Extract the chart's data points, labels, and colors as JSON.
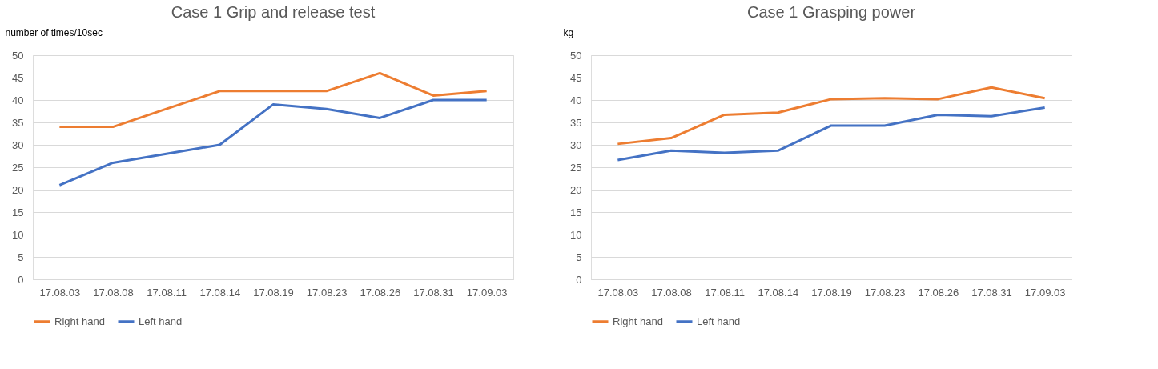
{
  "chart_data": [
    {
      "type": "line",
      "title": "Case 1 Grip and release test",
      "ylabel": "number of times/10sec",
      "categories": [
        "17.08.03",
        "17.08.08",
        "17.08.11",
        "17.08.14",
        "17.08.19",
        "17.08.23",
        "17.08.26",
        "17.08.31",
        "17.09.03"
      ],
      "series": [
        {
          "name": "Right hand",
          "color": "#ed7d31",
          "values": [
            34,
            34,
            38,
            42,
            42,
            42,
            46,
            41,
            42
          ]
        },
        {
          "name": "Left hand",
          "color": "#4472c4",
          "values": [
            21,
            26,
            28,
            30,
            39,
            38,
            36,
            40,
            40
          ]
        }
      ],
      "ylim": [
        0,
        50
      ],
      "yticks": [
        0,
        5,
        10,
        15,
        20,
        25,
        30,
        35,
        40,
        45,
        50
      ],
      "grid": "y",
      "legend": "bottom",
      "marker": "none",
      "line_style": "solid"
    },
    {
      "type": "line",
      "title": "Case 1 Grasping power",
      "ylabel": "kg",
      "categories": [
        "17.08.03",
        "17.08.08",
        "17.08.11",
        "17.08.14",
        "17.08.19",
        "17.08.23",
        "17.08.26",
        "17.08.31",
        "17.09.03"
      ],
      "series": [
        {
          "name": "Right hand",
          "color": "#ed7d31",
          "values": [
            30.2,
            31.5,
            36.7,
            37.2,
            40.2,
            40.4,
            40.2,
            42.8,
            40.4
          ]
        },
        {
          "name": "Left hand",
          "color": "#4472c4",
          "values": [
            26.6,
            28.7,
            28.2,
            28.7,
            34.3,
            34.3,
            36.7,
            36.4,
            38.3
          ]
        }
      ],
      "ylim": [
        0,
        50
      ],
      "yticks": [
        0,
        5,
        10,
        15,
        20,
        25,
        30,
        35,
        40,
        45,
        50
      ],
      "grid": "y",
      "legend": "bottom",
      "marker": "none",
      "line_style": "solid"
    }
  ]
}
